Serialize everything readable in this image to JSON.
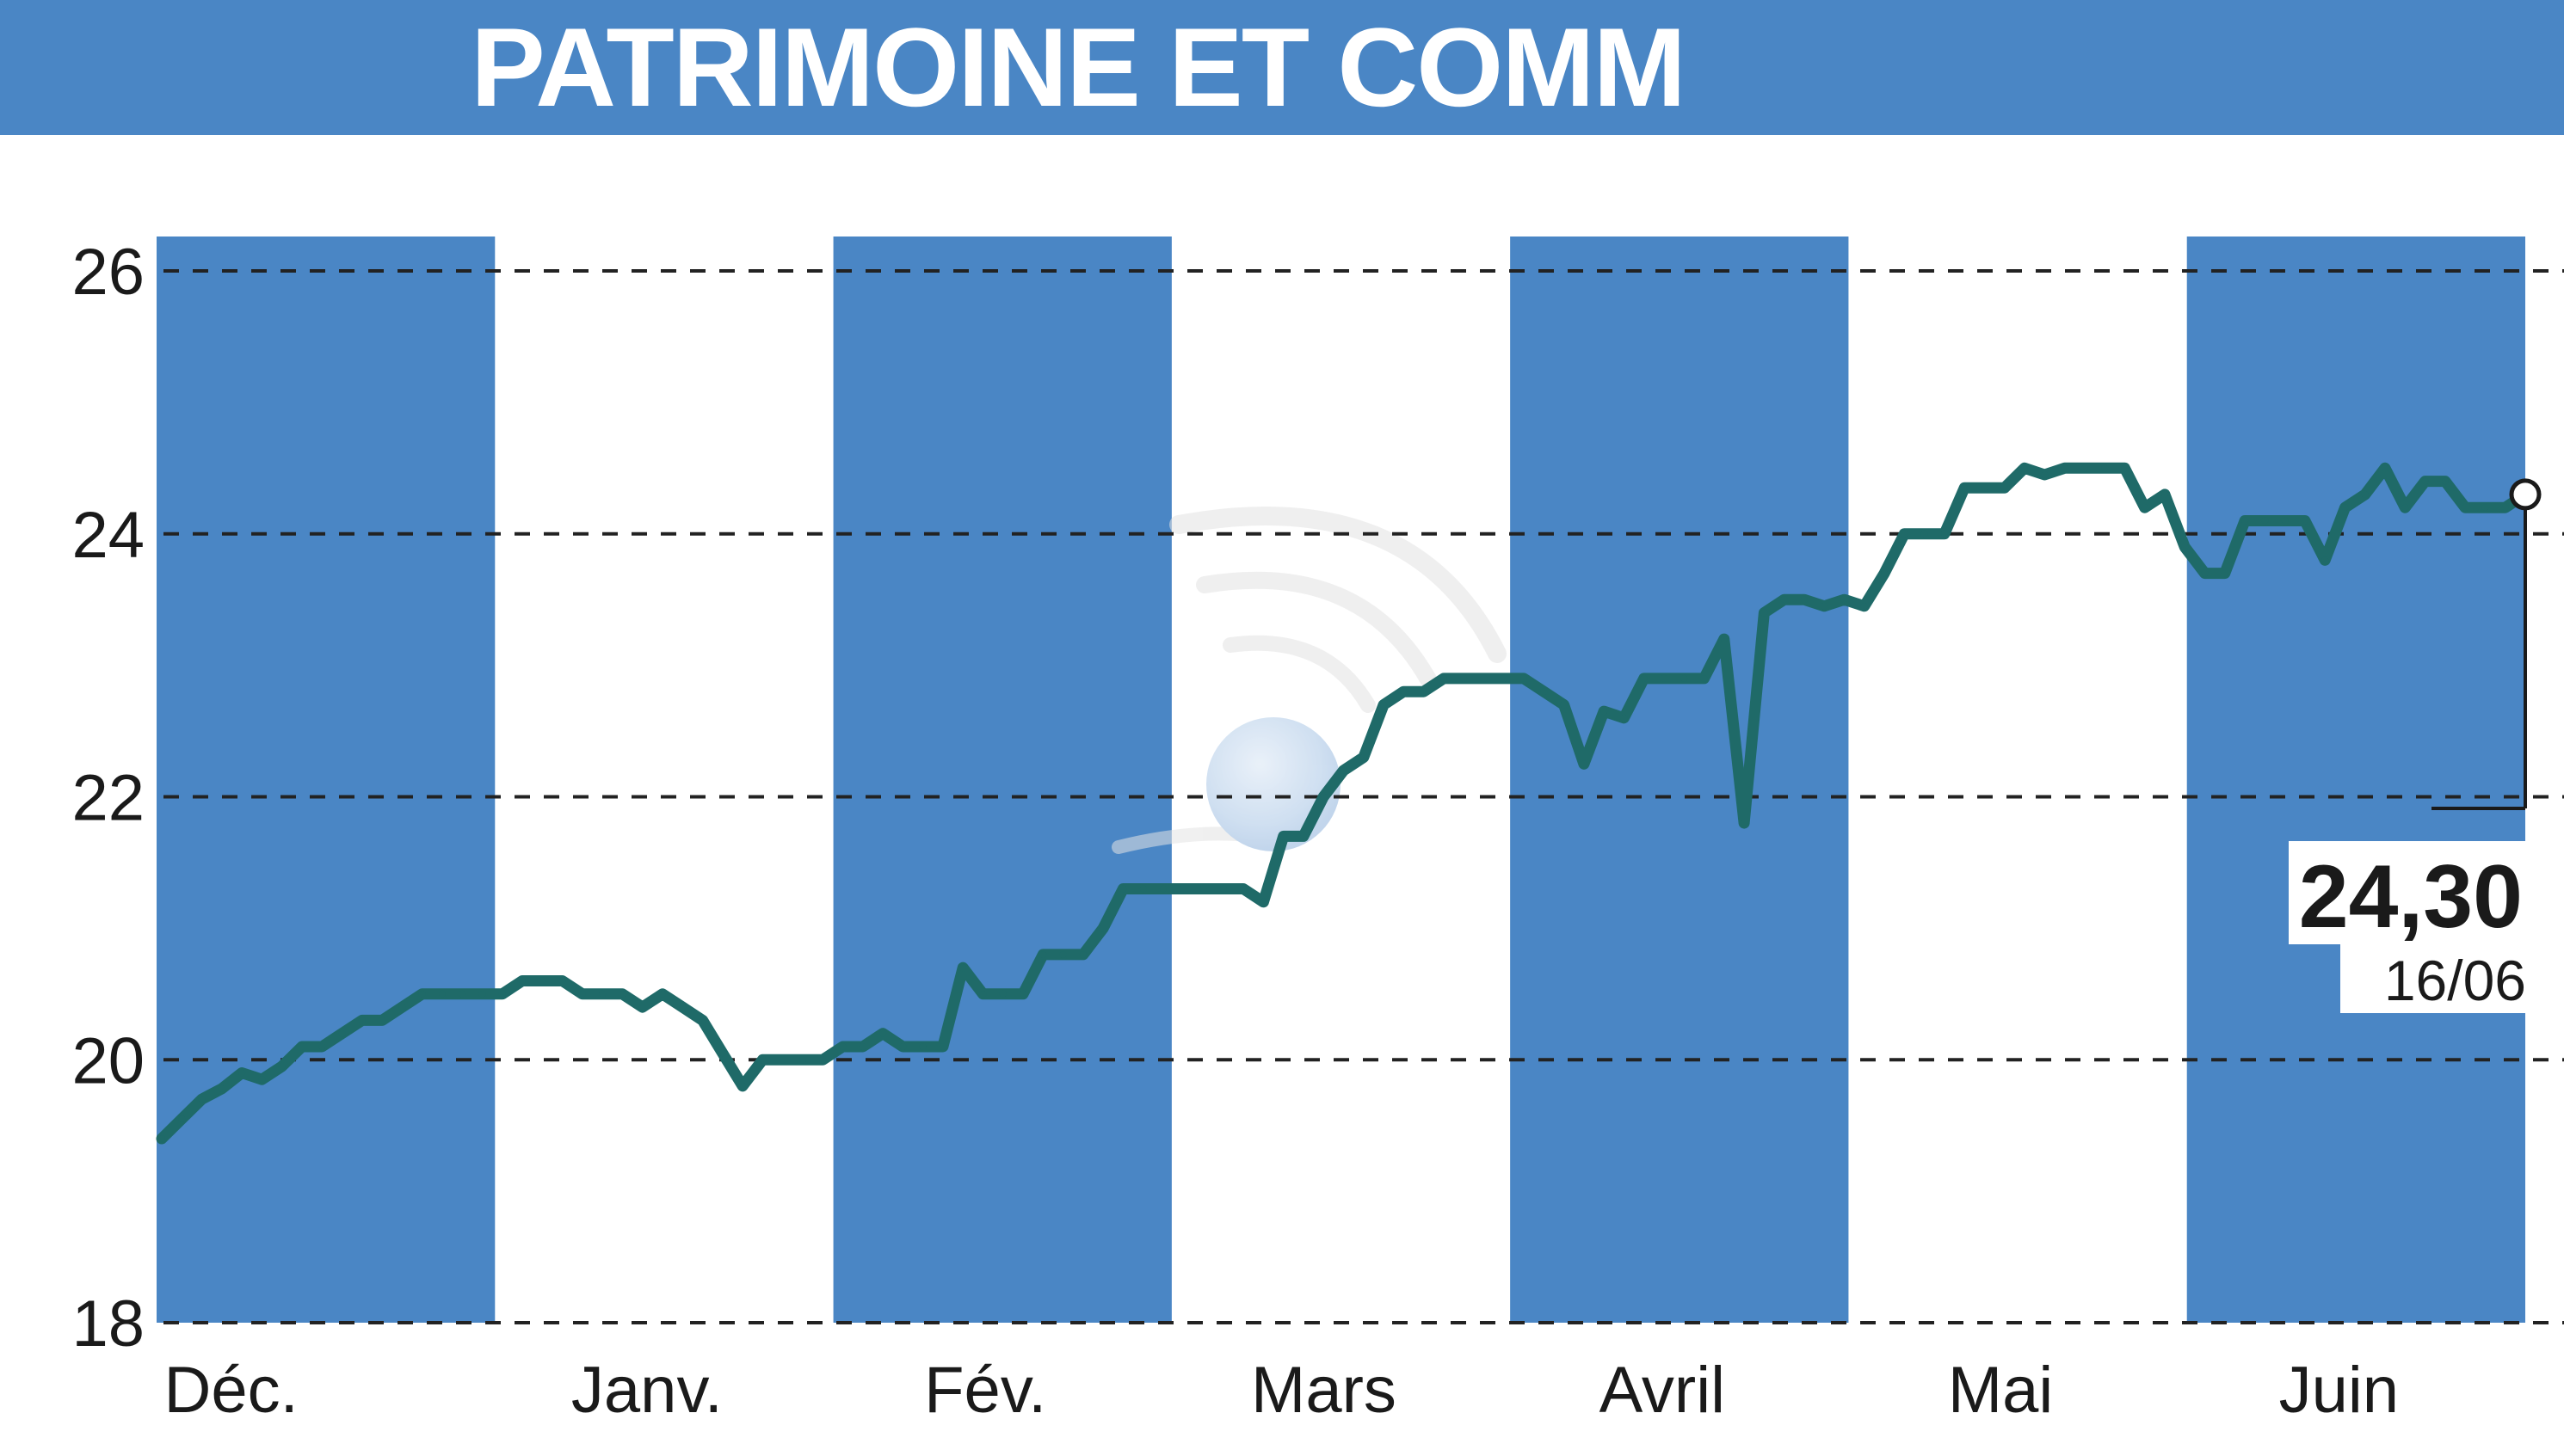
{
  "header": {
    "title": "PATRIMOINE ET COMM"
  },
  "colors": {
    "banner": "#4a86c5",
    "band": "#4a86c5",
    "line": "#1f6a68",
    "grid": "#222222"
  },
  "chart_data": {
    "type": "line",
    "title": "PATRIMOINE ET COMM",
    "xlabel": "",
    "ylabel": "",
    "ylim": [
      18,
      26
    ],
    "yticks": [
      "18",
      "20",
      "22",
      "24",
      "26"
    ],
    "grid": "horizontal dashed",
    "months": [
      "Déc.",
      "Janv.",
      "Fév.",
      "Mars",
      "Avril",
      "Mai",
      "Juin"
    ],
    "shaded_months": [
      "Déc.",
      "Fév.",
      "Avril",
      "Juin"
    ],
    "series": [
      {
        "values": [
          19.4,
          19.55,
          19.7,
          19.78,
          19.9,
          19.85,
          19.95,
          20.1,
          20.1,
          20.2,
          20.3,
          20.3,
          20.4,
          20.5,
          20.5,
          20.5,
          20.5,
          20.5,
          20.6,
          20.6,
          20.6,
          20.5,
          20.5,
          20.5,
          20.4,
          20.5,
          20.4,
          20.3,
          20.05,
          19.8,
          20.0,
          20.0,
          20.0,
          20.0,
          20.1,
          20.1,
          20.2,
          20.1,
          20.1,
          20.1,
          20.7,
          20.5,
          20.5,
          20.5,
          20.8,
          20.8,
          20.8,
          21.0,
          21.3,
          21.3,
          21.3,
          21.3,
          21.3,
          21.3,
          21.3,
          21.2,
          21.7,
          21.7,
          22.0,
          22.2,
          22.3,
          22.7,
          22.8,
          22.8,
          22.9,
          22.9,
          22.9,
          22.9,
          22.9,
          22.8,
          22.7,
          22.25,
          22.65,
          22.6,
          22.9,
          22.9,
          22.9,
          22.9,
          23.2,
          21.8,
          23.4,
          23.5,
          23.5,
          23.45,
          23.5,
          23.45,
          23.7,
          24.0,
          24.0,
          24.0,
          24.35,
          24.35,
          24.35,
          24.5,
          24.45,
          24.5,
          24.5,
          24.5,
          24.5,
          24.2,
          24.3,
          23.9,
          23.7,
          23.7,
          24.1,
          24.1,
          24.1,
          24.1,
          23.8,
          24.2,
          24.3,
          24.5,
          24.2,
          24.4,
          24.4,
          24.2,
          24.2,
          24.2,
          24.3
        ]
      }
    ],
    "last": {
      "value": "24,30",
      "date": "16/06"
    }
  }
}
